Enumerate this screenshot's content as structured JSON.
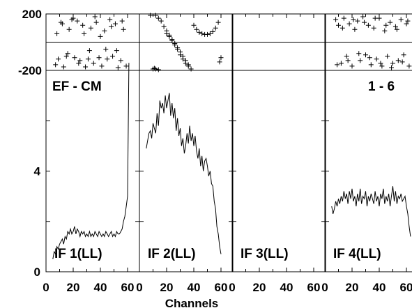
{
  "chart_data": {
    "type": "line",
    "xlabel": "Channels",
    "baseline_label": "EF - CM",
    "source_label": "1 - 6",
    "phase_ylim": [
      -200,
      200
    ],
    "phase_yticks": [
      "200",
      "-200"
    ],
    "amp_ylim": [
      0,
      8
    ],
    "amp_yticks": [
      "4",
      "0"
    ],
    "xlim": [
      0,
      64
    ],
    "xticks": [
      "0",
      "20",
      "40",
      "60"
    ],
    "panels": [
      {
        "label": "IF 1(LL)",
        "phase_x": [
          7,
          9,
          11,
          13,
          15,
          17,
          19,
          21,
          23,
          25,
          27,
          29,
          31,
          33,
          35,
          37,
          39,
          41,
          43,
          45,
          47,
          49,
          51,
          53,
          55,
          57,
          59,
          8,
          12,
          16,
          20,
          24,
          28,
          32,
          36,
          40,
          44,
          48,
          52,
          56
        ],
        "phase_y": [
          -160,
          -120,
          140,
          -175,
          -100,
          90,
          160,
          -110,
          150,
          -130,
          120,
          -175,
          -120,
          100,
          -150,
          140,
          -110,
          -170,
          80,
          -120,
          160,
          -100,
          130,
          -180,
          -130,
          90,
          -170,
          60,
          130,
          -80,
          170,
          -150,
          60,
          -60,
          180,
          40,
          -50,
          110,
          -60,
          150
        ],
        "amp_x": [
          5,
          6,
          7,
          8,
          9,
          10,
          11,
          12,
          13,
          14,
          15,
          16,
          17,
          18,
          19,
          20,
          21,
          22,
          23,
          24,
          25,
          26,
          27,
          28,
          29,
          30,
          31,
          32,
          33,
          34,
          35,
          36,
          37,
          38,
          39,
          40,
          41,
          42,
          43,
          44,
          45,
          46,
          47,
          48,
          49,
          50,
          51,
          52,
          53,
          54,
          55,
          56,
          57,
          58,
          59,
          60,
          61
        ],
        "amp_y": [
          0.5,
          0.8,
          0.7,
          1.0,
          0.9,
          1.1,
          1.2,
          1.3,
          1.1,
          1.4,
          1.3,
          1.6,
          1.5,
          1.7,
          1.5,
          1.6,
          1.8,
          1.5,
          1.7,
          1.6,
          1.4,
          1.6,
          1.5,
          1.6,
          1.4,
          1.5,
          1.4,
          1.6,
          1.4,
          1.5,
          1.4,
          1.6,
          1.5,
          1.4,
          1.6,
          1.5,
          1.4,
          1.5,
          1.4,
          1.6,
          1.5,
          1.4,
          1.5,
          1.6,
          1.4,
          1.5,
          1.4,
          1.6,
          1.5,
          1.5,
          1.6,
          1.7,
          2.0,
          2.2,
          2.6,
          3.0,
          8.3
        ]
      },
      {
        "label": "IF 2(LL)",
        "phase_x": [
          8,
          10,
          12,
          14,
          16,
          18,
          20,
          22,
          24,
          26,
          28,
          30,
          32,
          34,
          36,
          38,
          40,
          42,
          44,
          46,
          48,
          50,
          52,
          54,
          56,
          58,
          59,
          10,
          12,
          14,
          20,
          22,
          24,
          26,
          28,
          30,
          32,
          34,
          11,
          60,
          36
        ],
        "phase_y": [
          190,
          -190,
          190,
          170,
          150,
          110,
          80,
          50,
          20,
          -10,
          -40,
          -70,
          -100,
          -130,
          -160,
          -190,
          120,
          90,
          70,
          60,
          55,
          55,
          60,
          75,
          100,
          140,
          -140,
          -190,
          -190,
          -195,
          60,
          40,
          10,
          -20,
          -50,
          -90,
          -120,
          -150,
          -185,
          -110,
          -170
        ],
        "amp_x": [
          5,
          6,
          7,
          8,
          9,
          10,
          11,
          12,
          13,
          14,
          15,
          16,
          17,
          18,
          19,
          20,
          21,
          22,
          23,
          24,
          25,
          26,
          27,
          28,
          29,
          30,
          31,
          32,
          33,
          34,
          35,
          36,
          37,
          38,
          39,
          40,
          41,
          42,
          43,
          44,
          45,
          46,
          47,
          48,
          49,
          50,
          51,
          52,
          53,
          54,
          55,
          56,
          57,
          58,
          59,
          60
        ],
        "amp_y": [
          4.9,
          5.2,
          5.5,
          5.6,
          5.3,
          5.9,
          5.7,
          5.5,
          6.3,
          5.8,
          6.8,
          6.5,
          6.7,
          6.3,
          7.0,
          6.5,
          6.8,
          7.1,
          6.2,
          6.7,
          6.1,
          6.5,
          5.6,
          6.1,
          5.4,
          5.7,
          5.0,
          5.3,
          4.7,
          5.0,
          5.5,
          5.1,
          5.8,
          5.2,
          5.5,
          5.0,
          5.4,
          4.8,
          4.5,
          4.9,
          4.2,
          4.6,
          4.0,
          4.4,
          4.5,
          4.2,
          3.8,
          4.0,
          3.5,
          3.4,
          2.8,
          2.5,
          1.8,
          1.5,
          1.0,
          0.7
        ]
      },
      {
        "label": "IF 3(LL)",
        "phase_x": [],
        "phase_y": [],
        "amp_x": [],
        "amp_y": []
      },
      {
        "label": "IF 4(LL)",
        "phase_x": [
          8,
          10,
          12,
          14,
          16,
          18,
          20,
          22,
          24,
          26,
          28,
          30,
          32,
          34,
          36,
          38,
          40,
          42,
          44,
          46,
          48,
          50,
          52,
          54,
          56,
          58,
          60,
          62,
          9,
          13,
          17,
          21,
          25,
          29,
          33,
          37,
          41,
          45,
          49,
          53,
          57,
          61
        ],
        "phase_y": [
          160,
          120,
          -150,
          170,
          -100,
          130,
          -170,
          90,
          150,
          -130,
          180,
          -90,
          120,
          -160,
          100,
          -120,
          170,
          -170,
          80,
          -100,
          140,
          -150,
          110,
          -130,
          160,
          -90,
          130,
          -170,
          -160,
          100,
          -130,
          160,
          -80,
          140,
          -110,
          170,
          -150,
          120,
          -180,
          90,
          -140,
          150
        ],
        "amp_x": [
          5,
          6,
          7,
          8,
          9,
          10,
          11,
          12,
          13,
          14,
          15,
          16,
          17,
          18,
          19,
          20,
          21,
          22,
          23,
          24,
          25,
          26,
          27,
          28,
          29,
          30,
          31,
          32,
          33,
          34,
          35,
          36,
          37,
          38,
          39,
          40,
          41,
          42,
          43,
          44,
          45,
          46,
          47,
          48,
          49,
          50,
          51,
          52,
          53,
          54,
          55,
          56,
          57,
          58,
          59,
          60,
          61,
          62,
          63
        ],
        "amp_y": [
          2.6,
          2.3,
          2.5,
          2.8,
          2.6,
          2.9,
          2.7,
          3.0,
          2.8,
          3.2,
          2.9,
          3.1,
          2.7,
          3.2,
          2.9,
          3.3,
          2.8,
          3.0,
          2.6,
          3.1,
          2.8,
          3.3,
          2.7,
          3.0,
          2.9,
          3.2,
          2.6,
          3.0,
          2.8,
          3.1,
          2.9,
          2.7,
          3.2,
          2.8,
          3.0,
          2.6,
          3.1,
          2.9,
          3.3,
          2.7,
          3.0,
          2.8,
          3.1,
          2.6,
          3.0,
          3.4,
          2.8,
          3.2,
          2.7,
          3.0,
          2.9,
          3.1,
          2.8,
          2.9,
          3.0,
          2.6,
          2.3,
          1.8,
          1.4
        ]
      }
    ]
  }
}
